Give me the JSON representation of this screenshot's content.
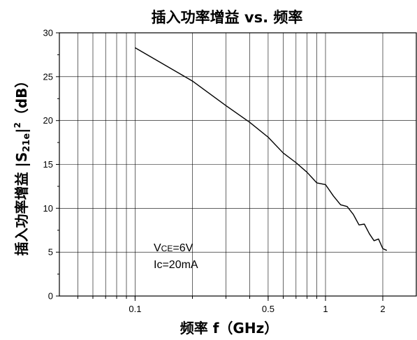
{
  "chart_data": {
    "type": "line",
    "title": "插入功率增益 vs. 频率",
    "xlabel": "频率 f（GHz）",
    "ylabel_parts": {
      "prefix": "插入功率增益 |S",
      "sub": "21e",
      "bar": "|",
      "sup": "2",
      "suffix": "（dB）"
    },
    "xscale": "log",
    "xlim": [
      0.04,
      3.0
    ],
    "ylim": [
      0,
      30
    ],
    "grid": true,
    "xticks": [
      {
        "value": 0.1,
        "label": "0.1"
      },
      {
        "value": 0.5,
        "label": "0.5"
      },
      {
        "value": 1,
        "label": "1"
      },
      {
        "value": 2,
        "label": "2"
      }
    ],
    "yticks": [
      0,
      5,
      10,
      15,
      20,
      25,
      30
    ],
    "series": [
      {
        "color": "#000000",
        "x": [
          0.1,
          0.2,
          0.3,
          0.4,
          0.5,
          0.6,
          0.7,
          0.8,
          0.9,
          1.0,
          1.1,
          1.2,
          1.3,
          1.4,
          1.5,
          1.6,
          1.7,
          1.8,
          1.9,
          2.0,
          2.1
        ],
        "y": [
          28.3,
          24.5,
          21.7,
          19.8,
          18.1,
          16.3,
          15.2,
          14.1,
          12.9,
          12.7,
          11.4,
          10.4,
          10.2,
          9.3,
          8.1,
          8.2,
          7.1,
          6.3,
          6.5,
          5.4,
          5.2
        ]
      }
    ],
    "annotation": {
      "line1_prefix": "V",
      "line1_sub": "CE",
      "line1_suffix": "=6V",
      "line2": "Ic=20mA"
    }
  }
}
